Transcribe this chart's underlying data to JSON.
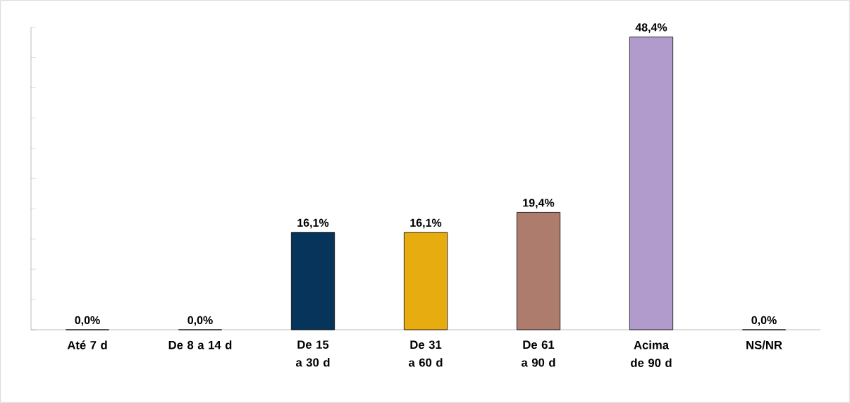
{
  "chart_data": {
    "type": "bar",
    "categories": [
      "Até 7 d",
      "De 8 a 14 d",
      "De 15 a 30 d",
      "De 31 a 60 d",
      "De 61 a 90 d",
      "Acima de 90 d",
      "NS/NR"
    ],
    "values": [
      0,
      0,
      16.1,
      16.1,
      19.4,
      48.4,
      0
    ],
    "value_labels": [
      "0,0%",
      "0,0%",
      "16,1%",
      "16,1%",
      "19,4%",
      "48,4%",
      "0,0%"
    ],
    "colors": [
      "#1f5c99",
      "#5a8f2e",
      "#06345a",
      "#e6ac10",
      "#ad7c6c",
      "#b19acc",
      "#6e82b0"
    ],
    "ylim": [
      0,
      50
    ],
    "yticks": [
      {
        "value": 0,
        "label": null
      },
      {
        "value": 5,
        "label": null
      },
      {
        "value": 10,
        "label": null
      },
      {
        "value": 15,
        "label": null
      },
      {
        "value": 20,
        "label": null
      },
      {
        "value": 25,
        "label": null
      },
      {
        "value": 30,
        "label": null
      },
      {
        "value": 35,
        "label": null
      },
      {
        "value": 40,
        "label": null
      },
      {
        "value": 45,
        "label": null
      },
      {
        "value": 50,
        "label": null
      }
    ],
    "tick_labels": "x",
    "grid": false
  }
}
